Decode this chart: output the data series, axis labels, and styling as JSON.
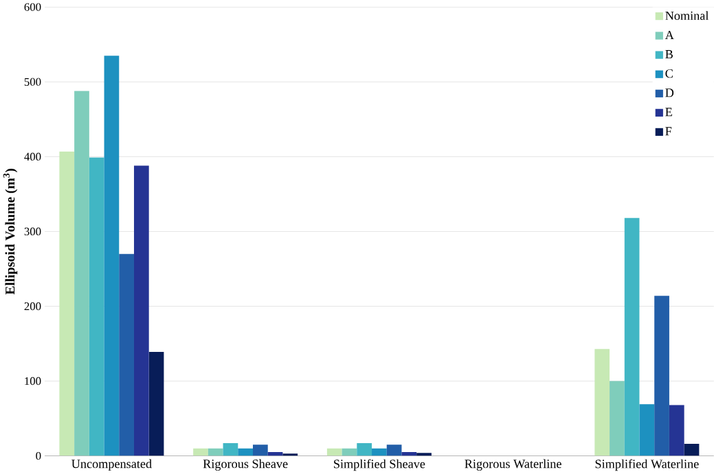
{
  "chart_data": {
    "type": "bar",
    "ylabel": "**Ellipsoid Volume (m$^{3}$)**",
    "categories": [
      "Uncompensated",
      "Rigorous Sheave",
      "Simplified Sheave",
      "Rigorous Waterline",
      "Simplified Waterline"
    ],
    "series": [
      {
        "name": "Nominal",
        "color": "#c7e9b4",
        "values": [
          407,
          10,
          10,
          0,
          143
        ]
      },
      {
        "name": "A",
        "color": "#7fcdbb",
        "values": [
          488,
          10,
          10,
          0,
          100
        ]
      },
      {
        "name": "B",
        "color": "#41b6c4",
        "values": [
          399,
          17,
          17,
          0,
          318
        ]
      },
      {
        "name": "C",
        "color": "#1d91c0",
        "values": [
          535,
          10,
          10,
          0,
          69
        ]
      },
      {
        "name": "D",
        "color": "#225ea8",
        "values": [
          270,
          15,
          15,
          0,
          214
        ]
      },
      {
        "name": "E",
        "color": "#253494",
        "values": [
          388,
          5,
          5,
          0,
          68
        ]
      },
      {
        "name": "F",
        "color": "#081d58",
        "values": [
          139,
          3,
          4,
          0,
          16
        ]
      }
    ],
    "ylim": [
      0,
      600
    ],
    "yticks": [
      0,
      100,
      200,
      300,
      400,
      500,
      600
    ],
    "grid": "y",
    "legend": "top right"
  }
}
